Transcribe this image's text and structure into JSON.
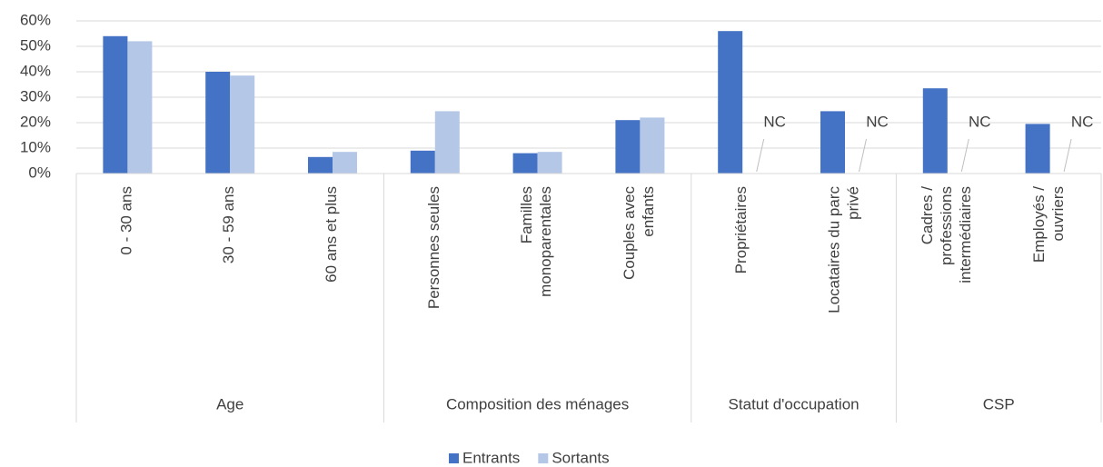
{
  "chart_data": {
    "type": "bar",
    "categories": [
      "0 - 30 ans",
      "30 - 59 ans",
      "60 ans et plus",
      "Personnes seules",
      "Familles monoparentales",
      "Couples avec enfants",
      "Propriétaires",
      "Locataires du parc privé",
      "Cadres / professions intermédiaires",
      "Employés / ouvriers"
    ],
    "groups": [
      {
        "name": "Age",
        "size": 3
      },
      {
        "name": "Composition des ménages",
        "size": 3
      },
      {
        "name": "Statut d'occupation",
        "size": 2
      },
      {
        "name": "CSP",
        "size": 2
      }
    ],
    "series": [
      {
        "name": "Entrants",
        "color": "#4472c4",
        "values": [
          54,
          40,
          6.5,
          9,
          8,
          21,
          56,
          24.5,
          33.5,
          19.5
        ]
      },
      {
        "name": "Sortants",
        "color": "#b4c7e7",
        "values": [
          52,
          38.5,
          8.5,
          24.5,
          8.5,
          22,
          null,
          null,
          null,
          null
        ],
        "value_labels": [
          null,
          null,
          null,
          null,
          null,
          null,
          "NC",
          "NC",
          "NC",
          "NC"
        ]
      }
    ],
    "ylim": [
      0,
      60
    ],
    "yticks": [
      {
        "value": 0,
        "label": "0%"
      },
      {
        "value": 10,
        "label": "10%"
      },
      {
        "value": 20,
        "label": "20%"
      },
      {
        "value": 30,
        "label": "30%"
      },
      {
        "value": 40,
        "label": "40%"
      },
      {
        "value": 50,
        "label": "50%"
      },
      {
        "value": 60,
        "label": "60%"
      }
    ],
    "grid": true,
    "legend": "bottom"
  }
}
